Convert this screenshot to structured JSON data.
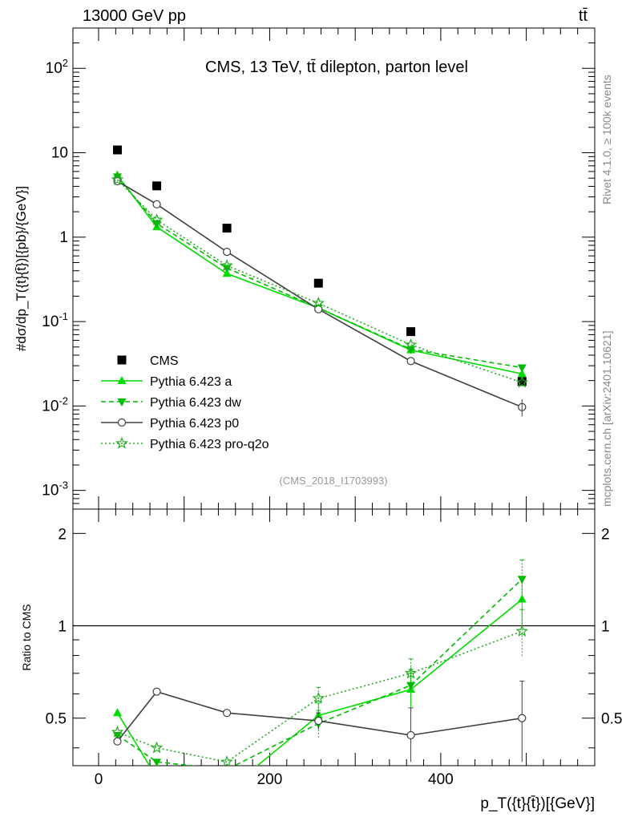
{
  "header": {
    "left_label": "13000 GeV pp",
    "right_label": "tt̄"
  },
  "side_labels": {
    "rivet": "Rivet 4.1.0, ≥ 100k events",
    "mcplots": "mcplots.cern.ch [arXiv:2401.10621]"
  },
  "chart_data": [
    {
      "type": "line",
      "title": "CMS, 13 TeV, tt̄ dilepton, parton level",
      "watermark": "(CMS_2018_I1703993)",
      "ylabel": "#dσ/dp_T({t}{t̄})[{pb}/{GeV}]",
      "yscale": "log",
      "ylim": [
        0.0006,
        300
      ],
      "yticks": [
        {
          "value": 0.001,
          "label": "10^-3"
        },
        {
          "value": 0.01,
          "label": "10^-2"
        },
        {
          "value": 0.1,
          "label": "10^-1"
        },
        {
          "value": 1,
          "label": "1"
        },
        {
          "value": 10,
          "label": "10"
        },
        {
          "value": 100,
          "label": "10^2"
        }
      ],
      "xlim": [
        -30,
        580
      ],
      "x": [
        22,
        68,
        150,
        257,
        365,
        495
      ],
      "legend_position": "lower-left",
      "series": [
        {
          "name": "CMS",
          "style": "marker-square",
          "color": "#000000",
          "values": [
            10.8,
            4.05,
            1.28,
            0.285,
            0.076,
            0.0195
          ]
        },
        {
          "name": "Pythia 6.423 a",
          "style": "solid-triangle-up",
          "color": "#00dd00",
          "values": [
            5.4,
            1.32,
            0.37,
            0.145,
            0.046,
            0.024
          ]
        },
        {
          "name": "Pythia 6.423 dw",
          "style": "dashed-triangle-down",
          "color": "#00bb00",
          "values": [
            5.2,
            1.45,
            0.43,
            0.145,
            0.047,
            0.0285
          ]
        },
        {
          "name": "Pythia 6.423 p0",
          "style": "solid-open-circle",
          "color": "#404040",
          "values": [
            4.6,
            2.45,
            0.67,
            0.14,
            0.034,
            0.0097
          ]
        },
        {
          "name": "Pythia 6.423 pro-q2o",
          "style": "dotted-star",
          "color": "#22aa22",
          "values": [
            4.8,
            1.6,
            0.46,
            0.165,
            0.053,
            0.019
          ]
        }
      ]
    },
    {
      "type": "line",
      "ylabel": "Ratio to CMS",
      "xlabel": "p_T({t}{t̄})[{GeV}]",
      "yscale": "log",
      "ylim": [
        0.35,
        2.4
      ],
      "yticks": [
        {
          "value": 0.5,
          "label": "0.5"
        },
        {
          "value": 1,
          "label": "1"
        },
        {
          "value": 2,
          "label": "2"
        }
      ],
      "xlim": [
        -30,
        580
      ],
      "xticks": [
        0,
        200,
        400
      ],
      "x": [
        22,
        68,
        150,
        257,
        365,
        495
      ],
      "reference_line": 1,
      "series": [
        {
          "name": "Pythia 6.423 a",
          "color": "#00dd00",
          "values": [
            0.52,
            0.32,
            0.29,
            0.51,
            0.62,
            1.22
          ],
          "errors": [
            0.02,
            0.02,
            0.02,
            0.05,
            0.08,
            0.22
          ]
        },
        {
          "name": "Pythia 6.423 dw",
          "color": "#00bb00",
          "values": [
            0.44,
            0.36,
            0.34,
            0.48,
            0.64,
            1.42
          ],
          "errors": [
            0.02,
            0.02,
            0.02,
            0.05,
            0.08,
            0.22
          ]
        },
        {
          "name": "Pythia 6.423 p0",
          "color": "#404040",
          "values": [
            0.42,
            0.61,
            0.52,
            0.49,
            0.44,
            0.5
          ],
          "errors": [
            0.01,
            0.01,
            0.02,
            0.03,
            0.1,
            0.16
          ]
        },
        {
          "name": "Pythia 6.423 pro-q2o",
          "color": "#22aa22",
          "values": [
            0.45,
            0.4,
            0.36,
            0.58,
            0.7,
            0.96
          ],
          "errors": [
            0.02,
            0.02,
            0.02,
            0.05,
            0.08,
            0.17
          ]
        }
      ]
    }
  ]
}
